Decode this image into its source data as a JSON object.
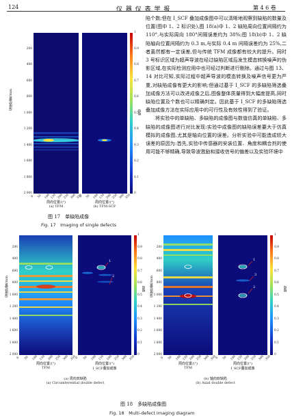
{
  "header": {
    "page_number": "124",
    "journal": "仪 器 仪 表 学 报",
    "volume": "第 4 6 卷"
  },
  "body_paragraphs": [
    "陷个数;但在 I_SCF 叠加成像图中可以清晰地观察到缺陷的数量及位置(图中 1、2 标识处),图 18(a)中 1、2 缺陷周向位置间隔约为 110°,与实际周向 180°间隔误差约为 38%;图 18(b)中 1、2 缺陷轴向位置间隔约为 0.3 m,与实际 0.4 m 间隔误差约为 25%,二者虽然都有一定误差,但与传统 TFM 成像都有较大的提升。同时 3 号标识区域为超声导波在经过缺陷区域后发生模态转换噪声的伪影区域,在实际检测应用中也可经过判断进行剔除。通过与图 13、14 对比可知,实际过程中超声导波的模态转换及噪声信号更为严重,对缺陷成像有更大的影响;但通过基于 I_SCF 的多缺陷筛选叠加成像方法可以改进成像之后,图像整体质量得到大幅度提高,同时缺陷位置及个数也可以精确判定。因此基于 I_SCF 的多缺陷筛选叠加成像方法在实际应用中的可行性及有效性得到了验证。",
    "将实验中的单缺陷、多缺陷的成像图与数值仿真的单缺陷、多缺陷的成像图进行对比发现:实验中成像图的缺陷误差要大于仿真模拟的成像图,尤其是轴向位置的误差。分析实验中可能造成较大误差的原因为:首先,实验中传感器的安装位置、角度和耦合剂的使用可能不够精确,导致导波激励和接收信号的偏差以及实验环境中"
  ],
  "fig17": {
    "ylabel": "深度位置/mm",
    "yticks": [
      "200",
      "400",
      "600",
      "800",
      "1 000",
      "1 200",
      "1 400",
      "1 600",
      "1 800",
      "2 000"
    ],
    "xticks": [
      "0",
      "50",
      "100",
      "150",
      "200",
      "250",
      "300",
      "350"
    ],
    "xlabel": "周向位置/(°)",
    "sub_a": "(a) TFM",
    "sub_b": "(b) TFM-SCF",
    "cb_ticks": [
      "0",
      "0.1",
      "0.2",
      "0.3",
      "0.4",
      "0.5",
      "0.6",
      "0.7",
      "0.8",
      "0.9",
      "1"
    ],
    "cb_label": "幅值",
    "caption_cn": "图 17　单缺陷成像",
    "caption_en": "Fig. 17　Imaging of single defects"
  },
  "fig18": {
    "ylabel": "深度位置/mm",
    "yticks": [
      "200",
      "400",
      "600",
      "800",
      "1 000",
      "1 200",
      "1 400",
      "1 600",
      "1 800",
      "2 000"
    ],
    "xticks": [
      "0",
      "50",
      "100",
      "150",
      "200",
      "250",
      "300",
      "350"
    ],
    "xlabel": "周向位置/(°)",
    "tfm_label": "TFM",
    "iscf_label": "I_SCF叠加成像",
    "sub_a_cn": "(a) 周向双缺陷",
    "sub_a_en": "(a) Circumferential double defect",
    "sub_b_cn": "(b) 轴向双缺陷",
    "sub_b_en": "(b) Axial double defect",
    "cb_ticks": [
      "0",
      "0.1",
      "0.2",
      "0.3",
      "0.4",
      "0.5",
      "0.6",
      "0.7",
      "0.8",
      "0.9",
      "1"
    ],
    "cb_label": "幅值",
    "markers": [
      "1",
      "2",
      "3"
    ],
    "caption_cn": "图 18　多缺陷成像图",
    "caption_en": "Fig. 18　Multi-defect imaging diagram"
  },
  "colors": {
    "deep_blue": "#0b0b7a",
    "hot_red": "#c40000",
    "accent_yellow": "#ffe23a"
  }
}
